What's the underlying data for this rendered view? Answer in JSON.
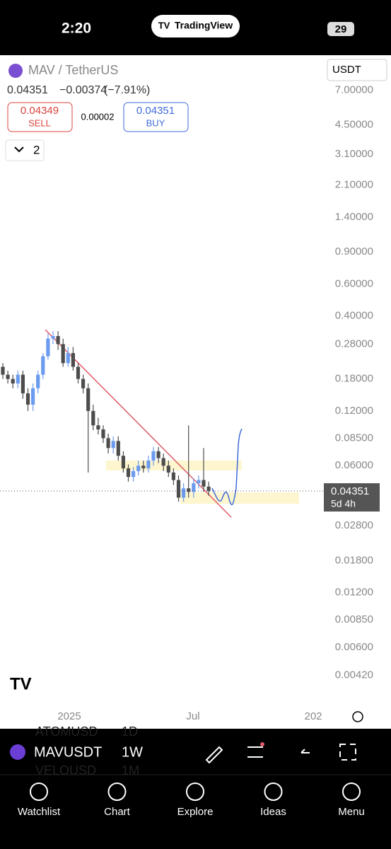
{
  "status_bar": {
    "time": "2:20",
    "app": "TradingView",
    "battery": "29"
  },
  "header": {
    "symbol": "MAV / TetherUS",
    "currency": "USDT",
    "price": "0.04351",
    "change": "−0.00374",
    "change_pct": "(−7.91%)",
    "sell_price": "0.04349",
    "sell_label": "SELL",
    "spread": "0.00002",
    "buy_price": "0.04351",
    "buy_label": "BUY",
    "indicators": "2"
  },
  "chart_data": {
    "type": "candlestick",
    "log_scale": true,
    "ylim": [
      0.0028,
      10.7
    ],
    "yticks": [
      {
        "value": 7,
        "label": "7.00000"
      },
      {
        "value": 4.5,
        "label": "4.50000"
      },
      {
        "value": 3.1,
        "label": "3.10000"
      },
      {
        "value": 2.1,
        "label": "2.10000"
      },
      {
        "value": 1.4,
        "label": "1.40000"
      },
      {
        "value": 0.9,
        "label": "0.90000"
      },
      {
        "value": 0.6,
        "label": "0.60000"
      },
      {
        "value": 0.4,
        "label": "0.40000"
      },
      {
        "value": 0.28,
        "label": "0.28000"
      },
      {
        "value": 0.18,
        "label": "0.18000"
      },
      {
        "value": 0.12,
        "label": "0.12000"
      },
      {
        "value": 0.085,
        "label": "0.08500"
      },
      {
        "value": 0.06,
        "label": "0.06000"
      },
      {
        "value": 0.028,
        "label": "0.02800"
      },
      {
        "value": 0.018,
        "label": "0.01800"
      },
      {
        "value": 0.012,
        "label": "0.01200"
      },
      {
        "value": 0.0085,
        "label": "0.00850"
      },
      {
        "value": 0.006,
        "label": "0.00600"
      },
      {
        "value": 0.0042,
        "label": "0.00420"
      }
    ],
    "xtick_labels": [
      "2025",
      "Jul",
      "202"
    ],
    "up_color": "#6b9bef",
    "down_color": "#4d4d4d",
    "open": [
      0.21,
      0.19,
      0.18,
      0.17,
      0.19,
      0.15,
      0.13,
      0.16,
      0.19,
      0.24,
      0.3,
      0.31,
      0.28,
      0.22,
      0.25,
      0.21,
      0.18,
      0.16,
      0.12,
      0.1,
      0.095,
      0.085,
      0.075,
      0.082,
      0.068,
      0.058,
      0.052,
      0.056,
      0.06,
      0.058,
      0.064,
      0.072,
      0.066,
      0.06,
      0.055,
      0.05,
      0.04,
      0.045,
      0.043,
      0.048,
      0.05,
      0.046
    ],
    "high": [
      0.22,
      0.2,
      0.19,
      0.2,
      0.2,
      0.16,
      0.17,
      0.2,
      0.25,
      0.32,
      0.33,
      0.33,
      0.3,
      0.27,
      0.27,
      0.22,
      0.19,
      0.17,
      0.13,
      0.11,
      0.1,
      0.09,
      0.087,
      0.087,
      0.072,
      0.061,
      0.059,
      0.064,
      0.064,
      0.068,
      0.076,
      0.076,
      0.07,
      0.064,
      0.058,
      0.053,
      0.048,
      0.1,
      0.051,
      0.053,
      0.075,
      0.049
    ],
    "low": [
      0.18,
      0.17,
      0.16,
      0.16,
      0.14,
      0.12,
      0.12,
      0.15,
      0.18,
      0.23,
      0.28,
      0.26,
      0.21,
      0.21,
      0.2,
      0.17,
      0.15,
      0.055,
      0.094,
      0.089,
      0.08,
      0.07,
      0.07,
      0.064,
      0.055,
      0.049,
      0.049,
      0.053,
      0.055,
      0.055,
      0.06,
      0.062,
      0.056,
      0.052,
      0.047,
      0.038,
      0.038,
      0.04,
      0.04,
      0.045,
      0.043,
      0.041
    ],
    "close": [
      0.19,
      0.18,
      0.17,
      0.19,
      0.15,
      0.13,
      0.16,
      0.19,
      0.24,
      0.3,
      0.31,
      0.28,
      0.22,
      0.25,
      0.21,
      0.18,
      0.16,
      0.12,
      0.1,
      0.095,
      0.085,
      0.075,
      0.082,
      0.068,
      0.058,
      0.052,
      0.056,
      0.06,
      0.058,
      0.064,
      0.072,
      0.066,
      0.06,
      0.055,
      0.05,
      0.04,
      0.045,
      0.043,
      0.048,
      0.05,
      0.046,
      0.0435
    ],
    "last_price": 0.04351,
    "countdown": "5d 4h"
  },
  "toolbar": {
    "symbol": "MAVUSDT",
    "interval": "1W",
    "ghost": [
      "ATOMUSD",
      "1D",
      "VELOUSD",
      "1M"
    ]
  },
  "nav": [
    "Watchlist",
    "Chart",
    "Explore",
    "Ideas",
    "Menu"
  ]
}
